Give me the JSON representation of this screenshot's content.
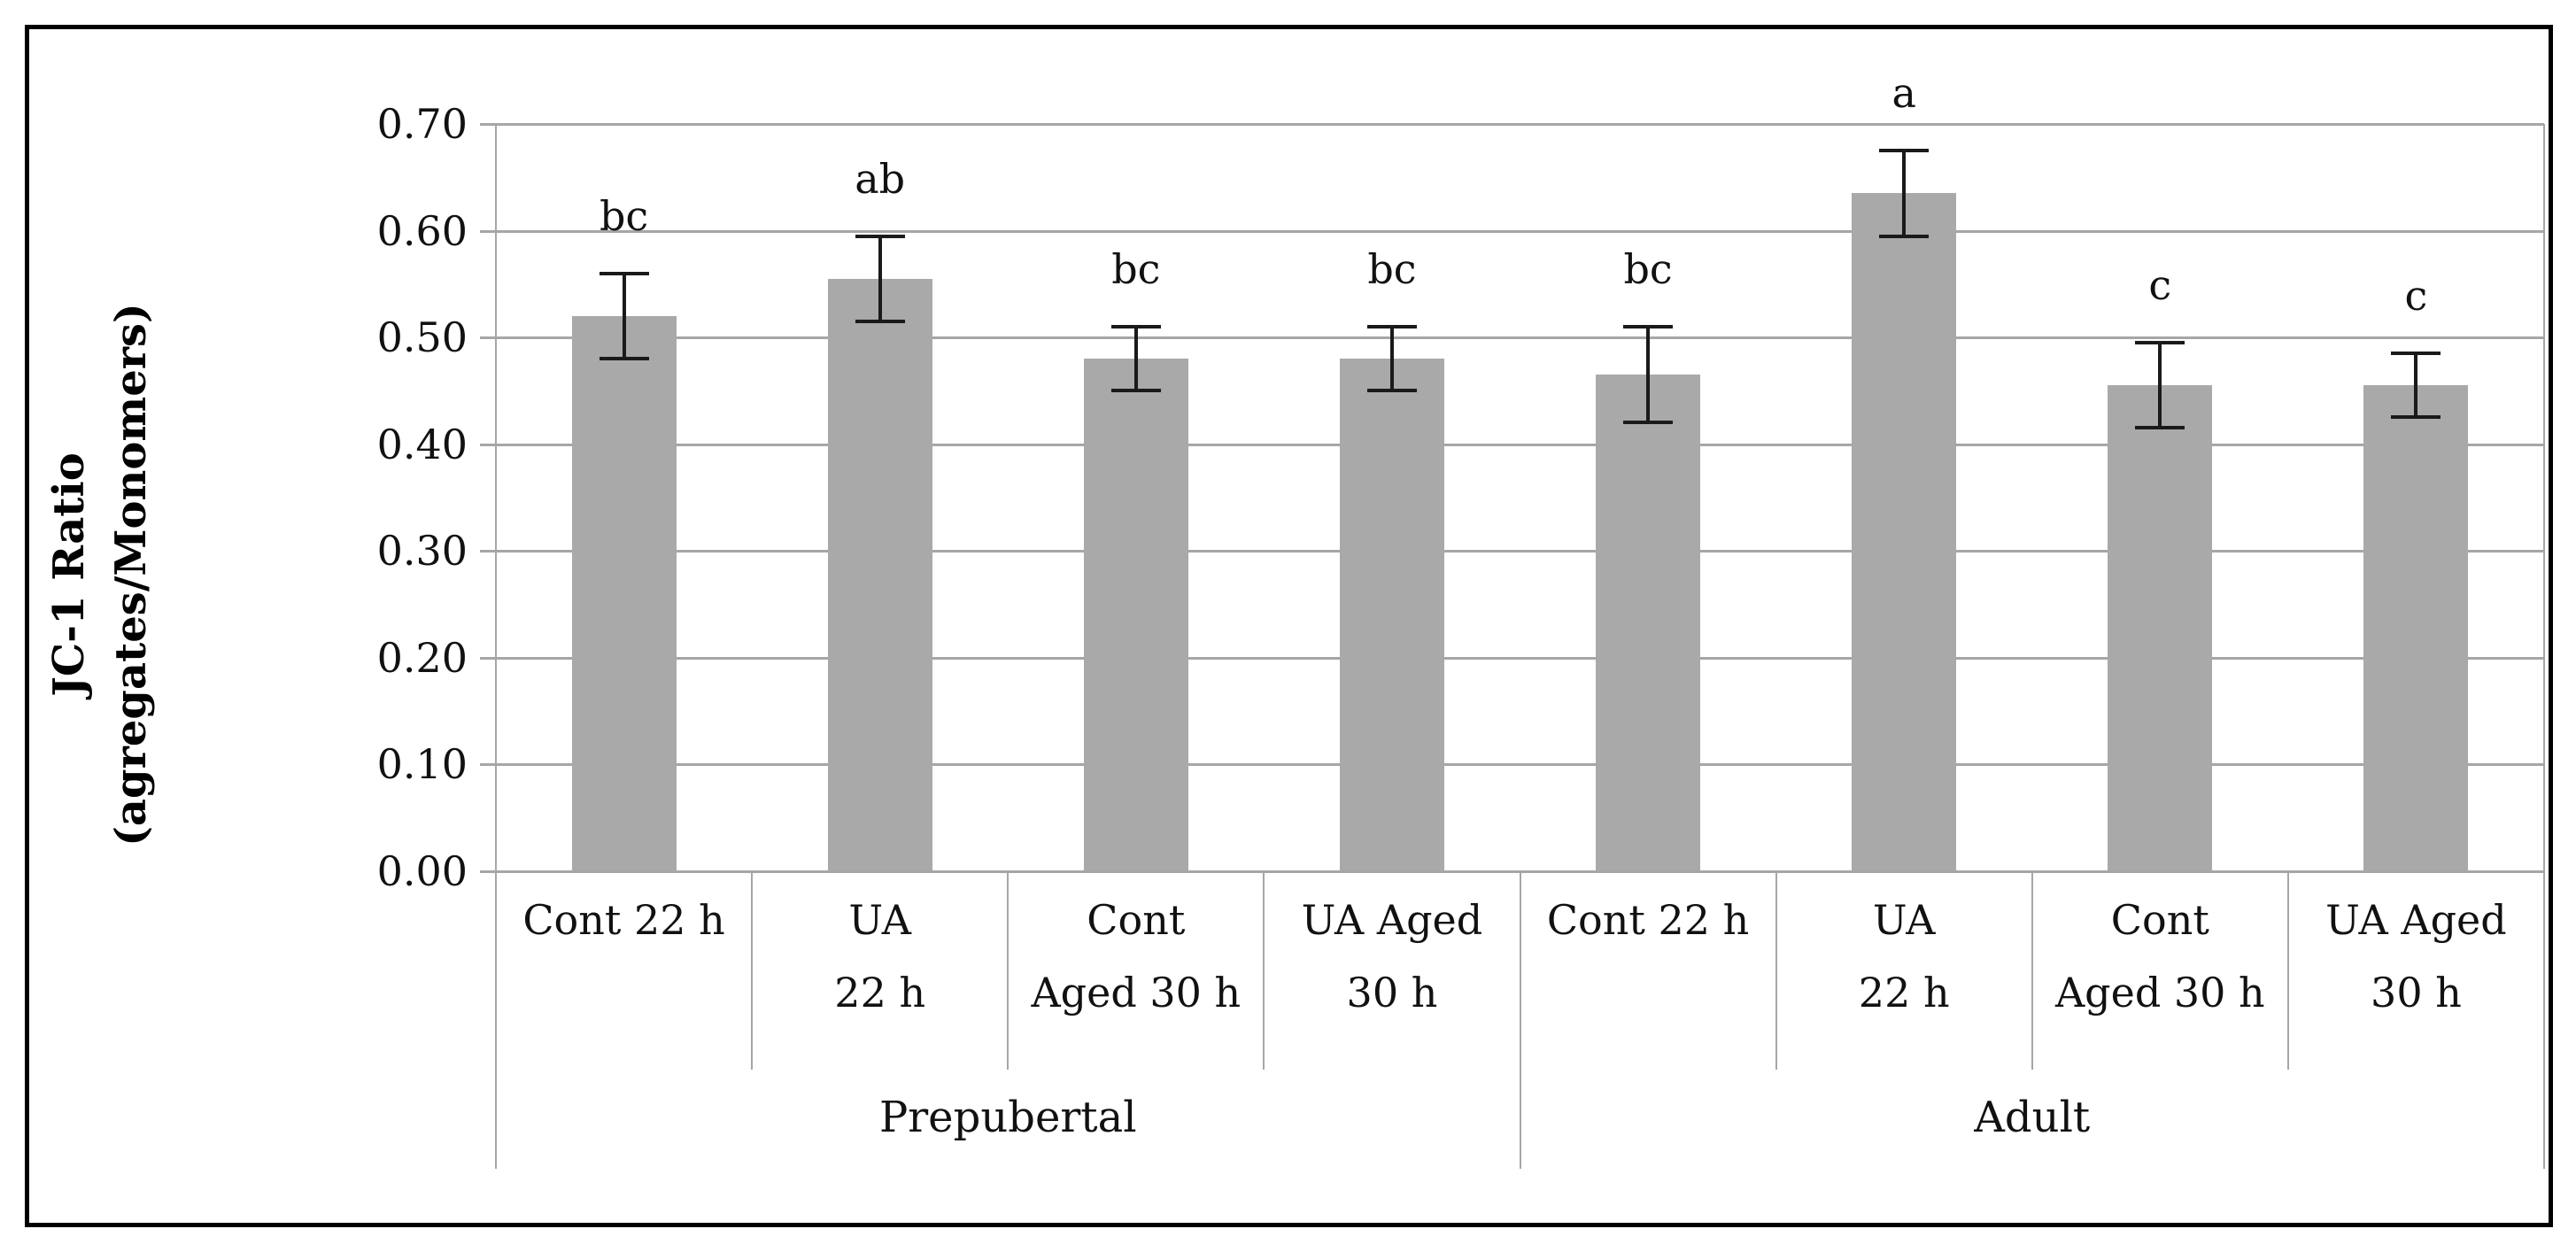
{
  "figure": {
    "frame_color": "#000000",
    "background": "#ffffff"
  },
  "chart_data": {
    "type": "bar",
    "title": "",
    "ylabel_lines": [
      "JC-1 Ratio",
      "(agregates/Monomers)"
    ],
    "ylabel": "JC-1 Ratio (agregates/Monomers)",
    "xlabel": "",
    "ylim": [
      0.0,
      0.7
    ],
    "ytick_step": 0.1,
    "ytick_labels": [
      "0.70",
      "0.60",
      "0.50",
      "0.40",
      "0.30",
      "0.20",
      "0.10",
      "0.00"
    ],
    "grid": "horizontal",
    "legend": "none",
    "bar_color": "#a9a9a9",
    "gridline_color": "#a6a6a6",
    "error_bar_color": "#1a1a1a",
    "groups": [
      {
        "label": "Prepubertal"
      },
      {
        "label": "Adult"
      }
    ],
    "categories": [
      {
        "group": "Prepubertal",
        "label_lines": [
          "Cont 22 h"
        ],
        "value": 0.52,
        "error": 0.04,
        "letter": "bc"
      },
      {
        "group": "Prepubertal",
        "label_lines": [
          "UA",
          "22 h"
        ],
        "value": 0.555,
        "error": 0.04,
        "letter": "ab"
      },
      {
        "group": "Prepubertal",
        "label_lines": [
          "Cont",
          "Aged 30 h"
        ],
        "value": 0.48,
        "error": 0.03,
        "letter": "bc"
      },
      {
        "group": "Prepubertal",
        "label_lines": [
          "UA Aged",
          "30 h"
        ],
        "value": 0.48,
        "error": 0.03,
        "letter": "bc"
      },
      {
        "group": "Adult",
        "label_lines": [
          "Cont 22 h"
        ],
        "value": 0.465,
        "error": 0.045,
        "letter": "bc"
      },
      {
        "group": "Adult",
        "label_lines": [
          "UA",
          "22 h"
        ],
        "value": 0.635,
        "error": 0.04,
        "letter": "a"
      },
      {
        "group": "Adult",
        "label_lines": [
          "Cont",
          "Aged 30 h"
        ],
        "value": 0.455,
        "error": 0.04,
        "letter": "c"
      },
      {
        "group": "Adult",
        "label_lines": [
          "UA Aged",
          "30 h"
        ],
        "value": 0.455,
        "error": 0.03,
        "letter": "c"
      }
    ]
  }
}
